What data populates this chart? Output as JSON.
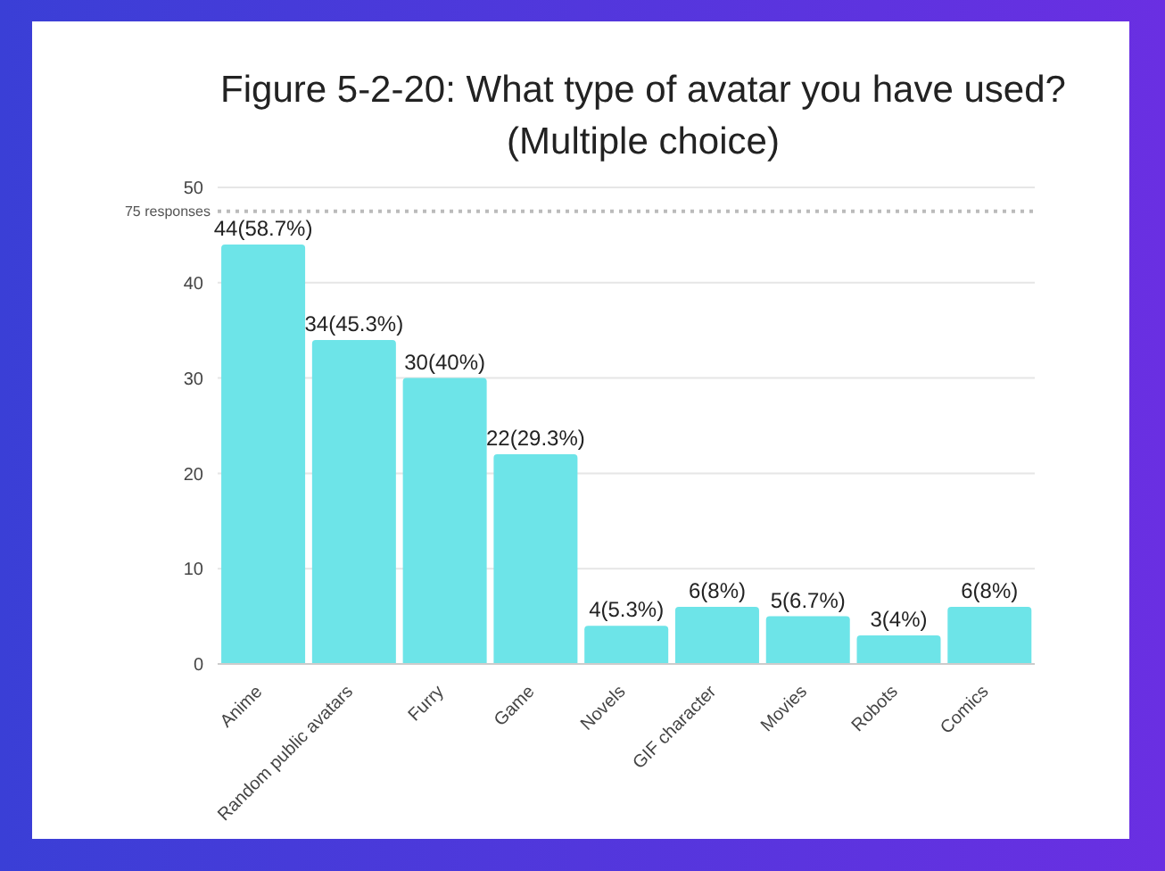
{
  "chart_data": {
    "type": "bar",
    "title": "Figure 5-2-20: What type of avatar you have used?\n(Multiple choice)",
    "categories": [
      "Anime",
      "Random public avatars",
      "Furry",
      "Game",
      "Novels",
      "GIF character",
      "Movies",
      "Robots",
      "Comics"
    ],
    "values": [
      44,
      34,
      30,
      22,
      4,
      6,
      5,
      3,
      6
    ],
    "value_labels": [
      "44(58.7%)",
      "34(45.3%)",
      "30(40%)",
      "22(29.3%)",
      "4(5.3%)",
      "6(8%)",
      "5(6.7%)",
      "3(4%)",
      "6(8%)"
    ],
    "color": "#6de4e8",
    "ylim": [
      0,
      50
    ],
    "yticks": [
      0,
      10,
      20,
      30,
      40,
      50
    ],
    "grid": "y",
    "ref_lines": [
      {
        "axis": "y",
        "value": 47.5,
        "label": "75 responses",
        "color": "#bbbbbb",
        "line_style": "dotted"
      }
    ]
  }
}
